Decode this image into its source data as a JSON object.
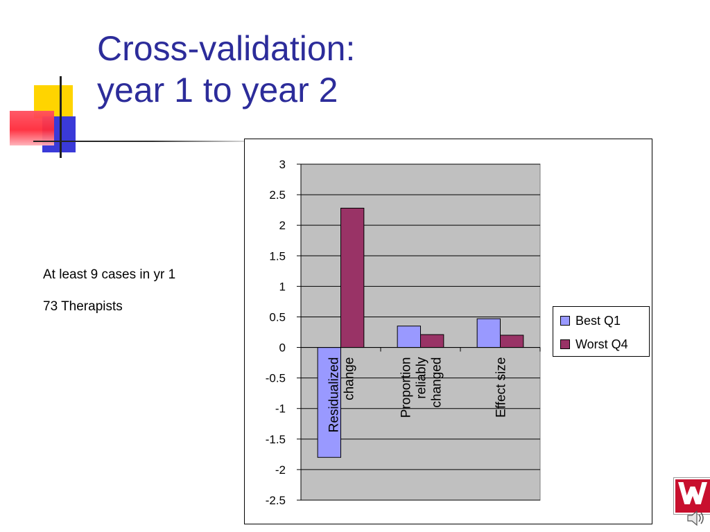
{
  "slide": {
    "title_lines": [
      "Cross-validation:",
      "year 1 to year 2"
    ],
    "notes": [
      "At least 9 cases in yr 1",
      "73 Therapists"
    ]
  },
  "colors": {
    "title": "#2c2c9a",
    "plot_area": "#c0c0c0",
    "best_q1": "#9999ff",
    "worst_q4": "#993366",
    "deco_yellow": "#ffd400",
    "deco_blue": "#3a3ad8",
    "deco_red": "#ff2a3a"
  },
  "icons": [
    "wisconsin-logo-icon",
    "speaker-icon"
  ],
  "chart_data": {
    "type": "bar",
    "title": "",
    "xlabel": "",
    "ylabel": "",
    "categories": [
      [
        "Residualized",
        "change"
      ],
      [
        "Proportion",
        "reliably",
        "changed"
      ],
      [
        "Effect size"
      ]
    ],
    "series": [
      {
        "name": "Best Q1",
        "values": [
          -1.8,
          0.35,
          0.47
        ]
      },
      {
        "name": "Worst Q4",
        "values": [
          2.28,
          0.21,
          0.2
        ]
      }
    ],
    "ylim": [
      -2.5,
      3
    ],
    "yticks": [
      "3",
      "2.5",
      "2",
      "1.5",
      "1",
      "0.5",
      "0",
      "-0.5",
      "-1",
      "-1.5",
      "-2",
      "-2.5"
    ],
    "grid": true,
    "legend_position": "right"
  }
}
